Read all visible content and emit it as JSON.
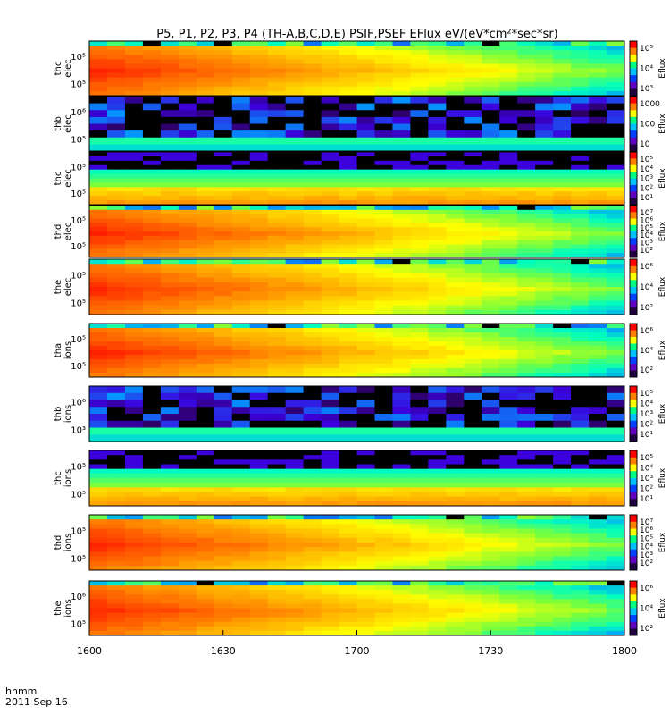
{
  "title": "P5, P1, P2, P3, P4 (TH-A,B,C,D,E) PSIF,PSEF EFlux eV/(eV*cm²*sec*sr)",
  "footer": {
    "label1": "hhmm",
    "label2": "2011 Sep 16"
  },
  "chart_data": {
    "type": "heatmap",
    "x_ticks": [
      "1600",
      "1630",
      "1700",
      "1730",
      "1800"
    ],
    "x_range": [
      "16:00",
      "18:00"
    ],
    "colorbar_colors": [
      "#ff0000",
      "#ff8000",
      "#ffff00",
      "#00ff80",
      "#00c0ff",
      "#0040ff",
      "#6000c0",
      "#200040"
    ],
    "panels": [
      {
        "label_1": "thc",
        "label_2": "elec",
        "yticks": [
          "10⁵",
          "10⁵"
        ],
        "cbar_label": "Eflux",
        "cbar_ticks": [
          "10⁵",
          "10⁴",
          "10³"
        ],
        "pattern": "main"
      },
      {
        "label_1": "thb",
        "label_2": "elec",
        "yticks": [
          "10⁶",
          "10⁵"
        ],
        "cbar_label": "Eflux",
        "cbar_ticks": [
          "1000",
          "100",
          "10"
        ],
        "pattern": "noise"
      },
      {
        "label_1": "thc",
        "label_2": "elec",
        "yticks": [
          "10⁵",
          "10⁵"
        ],
        "cbar_label": "Eflux",
        "cbar_ticks": [
          "10⁵",
          "10⁴",
          "10³",
          "10²",
          "10¹"
        ],
        "pattern": "thc"
      },
      {
        "label_1": "thd",
        "label_2": "elec",
        "yticks": [
          "10⁵",
          "10⁵"
        ],
        "cbar_label": "Eflux",
        "cbar_ticks": [
          "10⁷",
          "10⁶",
          "10⁵",
          "10⁴",
          "10³",
          "10²"
        ],
        "pattern": "main"
      },
      {
        "label_1": "the",
        "label_2": "elec",
        "yticks": [
          "10⁵",
          "10⁵"
        ],
        "cbar_label": "Eflux",
        "cbar_ticks": [
          "10⁶",
          "10⁴",
          "10²"
        ],
        "pattern": "main"
      },
      {
        "label_1": "tha",
        "label_2": "ions",
        "yticks": [
          "10⁵",
          "10⁵"
        ],
        "cbar_label": "Eflux",
        "cbar_ticks": [
          "10⁶",
          "10⁴",
          "10²"
        ],
        "pattern": "main"
      },
      {
        "label_1": "thb",
        "label_2": "ions",
        "yticks": [
          "10⁶",
          "10³"
        ],
        "cbar_label": "Eflux",
        "cbar_ticks": [
          "10⁵",
          "10⁴",
          "10³",
          "10²",
          "10¹"
        ],
        "pattern": "noise"
      },
      {
        "label_1": "thc",
        "label_2": "ions",
        "yticks": [
          "10⁵",
          "10⁵"
        ],
        "cbar_label": "Eflux",
        "cbar_ticks": [
          "10⁵",
          "10⁴",
          "10³",
          "10²",
          "10¹"
        ],
        "pattern": "thc"
      },
      {
        "label_1": "thd",
        "label_2": "ions",
        "yticks": [
          "10⁵",
          "10⁵"
        ],
        "cbar_label": "Eflux",
        "cbar_ticks": [
          "10⁷",
          "10⁶",
          "10⁵",
          "10⁴",
          "10³",
          "10²"
        ],
        "pattern": "main"
      },
      {
        "label_1": "the",
        "label_2": "ions",
        "yticks": [
          "10⁶",
          "10⁵"
        ],
        "cbar_label": "Eflux",
        "cbar_ticks": [
          "10⁶",
          "10⁴",
          "10²"
        ],
        "pattern": "main"
      }
    ]
  }
}
